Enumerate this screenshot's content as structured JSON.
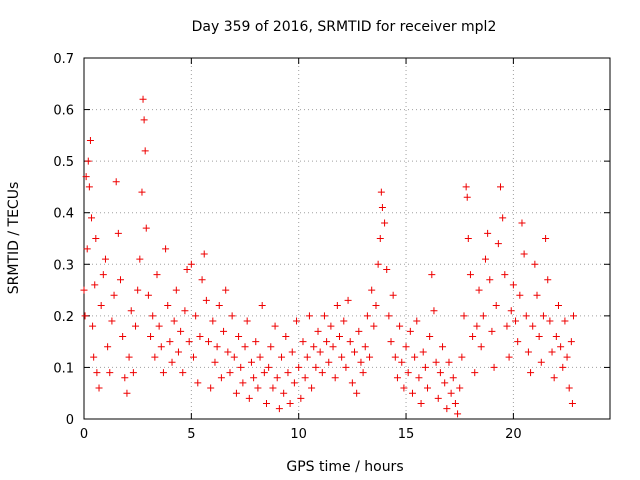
{
  "chart_data": {
    "type": "scatter",
    "title": "Day 359 of 2016, SRMTID for receiver mpl2",
    "xlabel": "GPS time / hours",
    "ylabel": "SRMTID / TECUs",
    "xlim": [
      0,
      24.5
    ],
    "ylim": [
      0,
      0.7
    ],
    "xticks": [
      "0",
      "5",
      "10",
      "15",
      "20"
    ],
    "xtick_values": [
      0,
      5,
      10,
      15,
      20
    ],
    "yticks": [
      "0",
      "0.1",
      "0.2",
      "0.3",
      "0.4",
      "0.5",
      "0.6",
      "0.7"
    ],
    "ytick_values": [
      0,
      0.1,
      0.2,
      0.3,
      0.4,
      0.5,
      0.6,
      0.7
    ],
    "grid": true,
    "marker": "+",
    "color": "#ee0000",
    "series": [
      {
        "name": "SRMTID",
        "points": [
          [
            0.0,
            0.25
          ],
          [
            0.05,
            0.2
          ],
          [
            0.1,
            0.47
          ],
          [
            0.15,
            0.33
          ],
          [
            0.2,
            0.5
          ],
          [
            0.25,
            0.45
          ],
          [
            0.3,
            0.54
          ],
          [
            0.35,
            0.39
          ],
          [
            0.4,
            0.18
          ],
          [
            0.45,
            0.12
          ],
          [
            0.5,
            0.26
          ],
          [
            0.55,
            0.35
          ],
          [
            0.6,
            0.09
          ],
          [
            0.7,
            0.06
          ],
          [
            0.8,
            0.22
          ],
          [
            0.9,
            0.28
          ],
          [
            1.0,
            0.31
          ],
          [
            1.1,
            0.14
          ],
          [
            1.2,
            0.09
          ],
          [
            1.3,
            0.19
          ],
          [
            1.4,
            0.24
          ],
          [
            1.5,
            0.46
          ],
          [
            1.6,
            0.36
          ],
          [
            1.7,
            0.27
          ],
          [
            1.8,
            0.16
          ],
          [
            1.9,
            0.08
          ],
          [
            2.0,
            0.05
          ],
          [
            2.1,
            0.12
          ],
          [
            2.2,
            0.21
          ],
          [
            2.3,
            0.09
          ],
          [
            2.4,
            0.18
          ],
          [
            2.5,
            0.25
          ],
          [
            2.6,
            0.31
          ],
          [
            2.7,
            0.44
          ],
          [
            2.75,
            0.62
          ],
          [
            2.8,
            0.58
          ],
          [
            2.85,
            0.52
          ],
          [
            2.9,
            0.37
          ],
          [
            3.0,
            0.24
          ],
          [
            3.1,
            0.16
          ],
          [
            3.2,
            0.2
          ],
          [
            3.3,
            0.12
          ],
          [
            3.4,
            0.28
          ],
          [
            3.5,
            0.18
          ],
          [
            3.6,
            0.14
          ],
          [
            3.7,
            0.09
          ],
          [
            3.8,
            0.33
          ],
          [
            3.9,
            0.22
          ],
          [
            4.0,
            0.15
          ],
          [
            4.1,
            0.11
          ],
          [
            4.2,
            0.19
          ],
          [
            4.3,
            0.25
          ],
          [
            4.4,
            0.13
          ],
          [
            4.5,
            0.17
          ],
          [
            4.6,
            0.09
          ],
          [
            4.7,
            0.21
          ],
          [
            4.8,
            0.29
          ],
          [
            4.9,
            0.15
          ],
          [
            5.0,
            0.3
          ],
          [
            5.1,
            0.12
          ],
          [
            5.2,
            0.2
          ],
          [
            5.3,
            0.07
          ],
          [
            5.4,
            0.16
          ],
          [
            5.5,
            0.27
          ],
          [
            5.6,
            0.32
          ],
          [
            5.7,
            0.23
          ],
          [
            5.8,
            0.15
          ],
          [
            5.9,
            0.06
          ],
          [
            6.0,
            0.19
          ],
          [
            6.1,
            0.11
          ],
          [
            6.2,
            0.14
          ],
          [
            6.3,
            0.22
          ],
          [
            6.4,
            0.08
          ],
          [
            6.5,
            0.17
          ],
          [
            6.6,
            0.25
          ],
          [
            6.7,
            0.13
          ],
          [
            6.8,
            0.09
          ],
          [
            6.9,
            0.2
          ],
          [
            7.0,
            0.12
          ],
          [
            7.1,
            0.05
          ],
          [
            7.2,
            0.16
          ],
          [
            7.3,
            0.1
          ],
          [
            7.4,
            0.07
          ],
          [
            7.5,
            0.14
          ],
          [
            7.6,
            0.19
          ],
          [
            7.7,
            0.04
          ],
          [
            7.8,
            0.11
          ],
          [
            7.9,
            0.08
          ],
          [
            8.0,
            0.15
          ],
          [
            8.1,
            0.06
          ],
          [
            8.2,
            0.12
          ],
          [
            8.3,
            0.22
          ],
          [
            8.4,
            0.09
          ],
          [
            8.5,
            0.03
          ],
          [
            8.6,
            0.1
          ],
          [
            8.7,
            0.14
          ],
          [
            8.8,
            0.06
          ],
          [
            8.9,
            0.18
          ],
          [
            9.0,
            0.08
          ],
          [
            9.1,
            0.02
          ],
          [
            9.2,
            0.12
          ],
          [
            9.3,
            0.05
          ],
          [
            9.4,
            0.16
          ],
          [
            9.5,
            0.09
          ],
          [
            9.6,
            0.03
          ],
          [
            9.7,
            0.13
          ],
          [
            9.8,
            0.07
          ],
          [
            9.9,
            0.19
          ],
          [
            10.0,
            0.1
          ],
          [
            10.1,
            0.04
          ],
          [
            10.2,
            0.15
          ],
          [
            10.3,
            0.08
          ],
          [
            10.4,
            0.12
          ],
          [
            10.5,
            0.2
          ],
          [
            10.6,
            0.06
          ],
          [
            10.7,
            0.14
          ],
          [
            10.8,
            0.1
          ],
          [
            10.9,
            0.17
          ],
          [
            11.0,
            0.13
          ],
          [
            11.1,
            0.09
          ],
          [
            11.2,
            0.2
          ],
          [
            11.3,
            0.15
          ],
          [
            11.4,
            0.11
          ],
          [
            11.5,
            0.18
          ],
          [
            11.6,
            0.14
          ],
          [
            11.7,
            0.08
          ],
          [
            11.8,
            0.22
          ],
          [
            11.9,
            0.16
          ],
          [
            12.0,
            0.12
          ],
          [
            12.1,
            0.19
          ],
          [
            12.2,
            0.1
          ],
          [
            12.3,
            0.23
          ],
          [
            12.4,
            0.15
          ],
          [
            12.5,
            0.07
          ],
          [
            12.6,
            0.13
          ],
          [
            12.7,
            0.05
          ],
          [
            12.8,
            0.17
          ],
          [
            12.9,
            0.11
          ],
          [
            13.0,
            0.09
          ],
          [
            13.1,
            0.14
          ],
          [
            13.2,
            0.2
          ],
          [
            13.3,
            0.12
          ],
          [
            13.4,
            0.25
          ],
          [
            13.5,
            0.18
          ],
          [
            13.6,
            0.22
          ],
          [
            13.7,
            0.3
          ],
          [
            13.8,
            0.35
          ],
          [
            13.85,
            0.44
          ],
          [
            13.9,
            0.41
          ],
          [
            14.0,
            0.38
          ],
          [
            14.1,
            0.29
          ],
          [
            14.2,
            0.2
          ],
          [
            14.3,
            0.15
          ],
          [
            14.4,
            0.24
          ],
          [
            14.5,
            0.12
          ],
          [
            14.6,
            0.08
          ],
          [
            14.7,
            0.18
          ],
          [
            14.8,
            0.11
          ],
          [
            14.9,
            0.06
          ],
          [
            15.0,
            0.14
          ],
          [
            15.1,
            0.09
          ],
          [
            15.2,
            0.17
          ],
          [
            15.3,
            0.05
          ],
          [
            15.4,
            0.12
          ],
          [
            15.5,
            0.19
          ],
          [
            15.6,
            0.08
          ],
          [
            15.7,
            0.03
          ],
          [
            15.8,
            0.13
          ],
          [
            15.9,
            0.1
          ],
          [
            16.0,
            0.06
          ],
          [
            16.1,
            0.16
          ],
          [
            16.2,
            0.28
          ],
          [
            16.3,
            0.21
          ],
          [
            16.4,
            0.11
          ],
          [
            16.5,
            0.04
          ],
          [
            16.6,
            0.09
          ],
          [
            16.7,
            0.14
          ],
          [
            16.8,
            0.07
          ],
          [
            16.9,
            0.02
          ],
          [
            17.0,
            0.11
          ],
          [
            17.1,
            0.05
          ],
          [
            17.2,
            0.08
          ],
          [
            17.3,
            0.03
          ],
          [
            17.4,
            0.01
          ],
          [
            17.5,
            0.06
          ],
          [
            17.6,
            0.12
          ],
          [
            17.7,
            0.2
          ],
          [
            17.8,
            0.45
          ],
          [
            17.85,
            0.43
          ],
          [
            17.9,
            0.35
          ],
          [
            18.0,
            0.28
          ],
          [
            18.1,
            0.16
          ],
          [
            18.2,
            0.09
          ],
          [
            18.3,
            0.18
          ],
          [
            18.4,
            0.25
          ],
          [
            18.5,
            0.14
          ],
          [
            18.6,
            0.2
          ],
          [
            18.7,
            0.31
          ],
          [
            18.8,
            0.36
          ],
          [
            18.9,
            0.27
          ],
          [
            19.0,
            0.17
          ],
          [
            19.1,
            0.1
          ],
          [
            19.2,
            0.22
          ],
          [
            19.3,
            0.34
          ],
          [
            19.4,
            0.45
          ],
          [
            19.5,
            0.39
          ],
          [
            19.6,
            0.28
          ],
          [
            19.7,
            0.18
          ],
          [
            19.8,
            0.12
          ],
          [
            19.9,
            0.21
          ],
          [
            20.0,
            0.26
          ],
          [
            20.1,
            0.19
          ],
          [
            20.2,
            0.15
          ],
          [
            20.3,
            0.24
          ],
          [
            20.4,
            0.38
          ],
          [
            20.5,
            0.32
          ],
          [
            20.6,
            0.2
          ],
          [
            20.7,
            0.13
          ],
          [
            20.8,
            0.09
          ],
          [
            20.9,
            0.18
          ],
          [
            21.0,
            0.3
          ],
          [
            21.1,
            0.24
          ],
          [
            21.2,
            0.16
          ],
          [
            21.3,
            0.11
          ],
          [
            21.4,
            0.2
          ],
          [
            21.5,
            0.35
          ],
          [
            21.6,
            0.27
          ],
          [
            21.7,
            0.19
          ],
          [
            21.8,
            0.13
          ],
          [
            21.9,
            0.08
          ],
          [
            22.0,
            0.16
          ],
          [
            22.1,
            0.22
          ],
          [
            22.2,
            0.14
          ],
          [
            22.3,
            0.1
          ],
          [
            22.4,
            0.19
          ],
          [
            22.5,
            0.12
          ],
          [
            22.6,
            0.06
          ],
          [
            22.7,
            0.15
          ],
          [
            22.75,
            0.03
          ],
          [
            22.8,
            0.2
          ]
        ]
      }
    ]
  }
}
